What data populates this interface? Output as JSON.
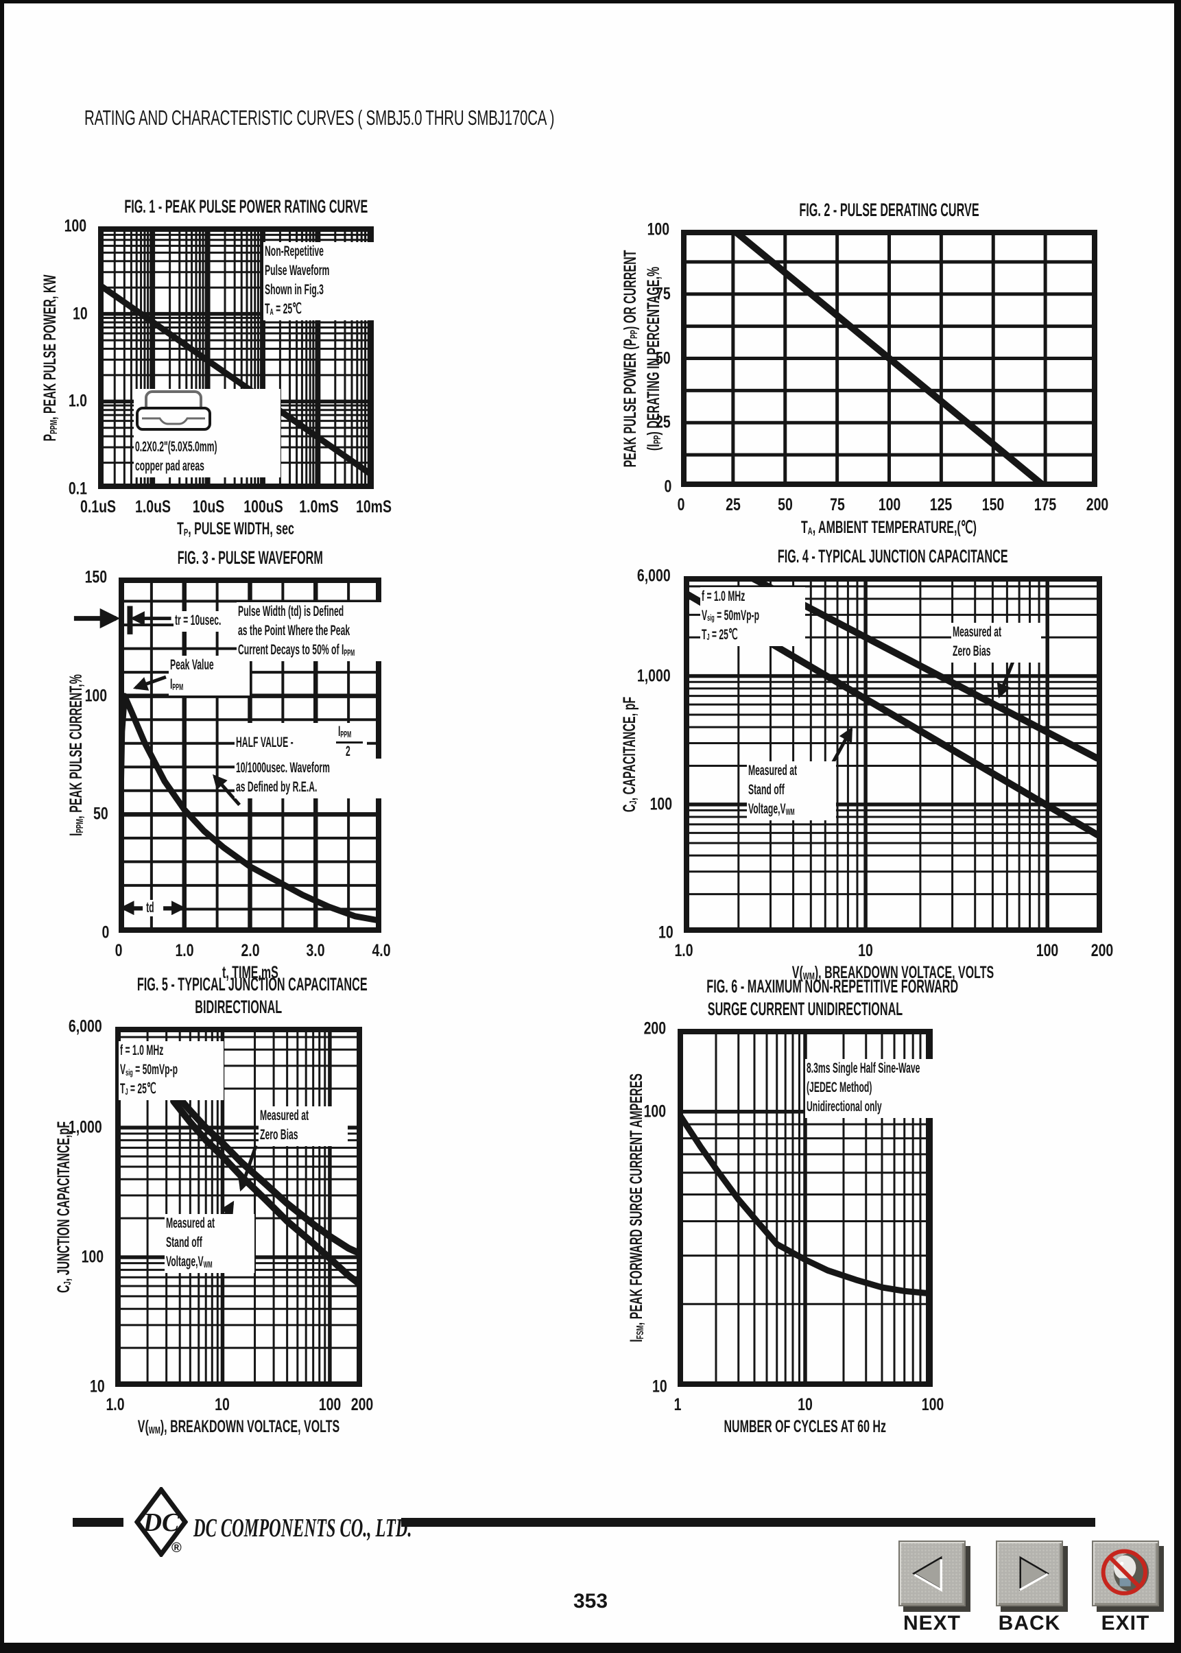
{
  "page": {
    "title": "RATING AND CHARACTERISTIC CURVES ( SMBJ5.0 THRU SMBJ170CA )",
    "page_number": "353",
    "footer": {
      "company": "DC COMPONENTS CO., LTD.",
      "logo_text": "DC",
      "registered": "®"
    },
    "nav": {
      "next": "NEXT",
      "back": "BACK",
      "exit": "EXIT"
    },
    "colors": {
      "ink": "#161616",
      "paper": "#fefefe",
      "button_face": "#b4b3ae",
      "exit_red": "#c6261e"
    }
  },
  "chart_data": [
    {
      "id": "fig1",
      "type": "line",
      "title_lines": [
        "FIG. 1 - PEAK PULSE POWER RATING CURVE"
      ],
      "xlabel": "T_{P}, PULSE WIDTH, sec",
      "ylabel_lines": [
        "P_{PPM}, PEAK PULSE POWER, KW"
      ],
      "xscale": "log",
      "yscale": "log",
      "xlim": [
        1e-07,
        0.01
      ],
      "ylim": [
        0.1,
        100
      ],
      "stroke": 9,
      "xticks": [
        {
          "v": 1e-07,
          "label": "0.1uS"
        },
        {
          "v": 1e-06,
          "label": "1.0uS"
        },
        {
          "v": 1e-05,
          "label": "10uS"
        },
        {
          "v": 0.0001,
          "label": "100uS"
        },
        {
          "v": 0.001,
          "label": "1.0mS"
        },
        {
          "v": 0.01,
          "label": "10mS"
        }
      ],
      "yticks": [
        {
          "v": 100,
          "label": "100"
        },
        {
          "v": 10,
          "label": "10"
        },
        {
          "v": 1,
          "label": "1.0"
        },
        {
          "v": 0.1,
          "label": "0.1"
        }
      ],
      "series": [
        {
          "name": "peak-pulse-power",
          "points": [
            [
              1e-07,
              22
            ],
            [
              1e-06,
              8.0
            ],
            [
              1e-05,
              2.9
            ],
            [
              0.0001,
              1.06
            ],
            [
              0.001,
              0.385
            ],
            [
              0.01,
              0.14
            ]
          ]
        }
      ],
      "annotations": [
        {
          "type": "text",
          "x": 60,
          "y": 6,
          "lines": [
            "Non-Repetitive",
            "Pulse Waveform",
            "Shown in Fig.3",
            "T_{A} = 25℃"
          ]
        },
        {
          "type": "device",
          "x": 13,
          "y": 62,
          "lines": [
            "0.2X0.2\"(5.0X5.0mm)",
            "copper pad areas"
          ]
        }
      ]
    },
    {
      "id": "fig2",
      "type": "line",
      "title_lines": [
        "FIG. 2 - PULSE DERATING CURVE"
      ],
      "xlabel": "T_{A}, AMBIENT TEMPERATURE,(℃)",
      "ylabel_lines": [
        "PEAK PULSE POWER (P_{PP}) OR CURRENT",
        "(I_{PP}) DERATING IN PERCENTAGE,%"
      ],
      "xscale": "linear",
      "yscale": "linear",
      "xlim": [
        0,
        200
      ],
      "ylim": [
        0,
        100
      ],
      "grid": {
        "x_minor": 25,
        "y_minor": 12.5,
        "minor_w": 5,
        "major_w": 5
      },
      "stroke": 10,
      "xticks": [
        {
          "v": 0,
          "label": "0"
        },
        {
          "v": 25,
          "label": "25"
        },
        {
          "v": 50,
          "label": "50"
        },
        {
          "v": 75,
          "label": "75"
        },
        {
          "v": 100,
          "label": "100"
        },
        {
          "v": 125,
          "label": "125"
        },
        {
          "v": 150,
          "label": "150"
        },
        {
          "v": 175,
          "label": "175"
        },
        {
          "v": 200,
          "label": "200"
        }
      ],
      "yticks": [
        {
          "v": 100,
          "label": "100"
        },
        {
          "v": 75,
          "label": "75"
        },
        {
          "v": 50,
          "label": "50"
        },
        {
          "v": 25,
          "label": "25"
        },
        {
          "v": 0,
          "label": "0"
        }
      ],
      "series": [
        {
          "name": "derating",
          "points": [
            [
              0,
              100
            ],
            [
              25,
              100
            ],
            [
              175,
              0
            ]
          ]
        }
      ],
      "annotations": []
    },
    {
      "id": "fig3",
      "type": "line",
      "title_lines": [
        "FIG. 3 - PULSE WAVEFORM"
      ],
      "xlabel": "t, TIME,mS",
      "ylabel_lines": [
        "I_{PPM}, PEAK PULSE CURRENT,%"
      ],
      "xscale": "linear",
      "yscale": "linear",
      "xlim": [
        0,
        4
      ],
      "ylim": [
        0,
        150
      ],
      "grid": {
        "x_minor": 0.5,
        "x_major": 1,
        "y_minor": 10,
        "y_major": 50,
        "minor_w": 4,
        "major_w": 6.5
      },
      "stroke": 9,
      "xticks": [
        {
          "v": 0,
          "label": "0"
        },
        {
          "v": 1,
          "label": "1.0"
        },
        {
          "v": 2,
          "label": "2.0"
        },
        {
          "v": 3,
          "label": "3.0"
        },
        {
          "v": 4,
          "label": "4.0"
        }
      ],
      "yticks": [
        {
          "v": 150,
          "label": "150"
        },
        {
          "v": 100,
          "label": "100"
        },
        {
          "v": 50,
          "label": "50"
        },
        {
          "v": 0,
          "label": "0"
        }
      ],
      "series": [
        {
          "name": "pulse-waveform",
          "points": [
            [
              0,
              0
            ],
            [
              0.02,
              40
            ],
            [
              0.05,
              85
            ],
            [
              0.09,
              100
            ],
            [
              0.2,
              93
            ],
            [
              0.4,
              80
            ],
            [
              0.7,
              64
            ],
            [
              1.0,
              52
            ],
            [
              1.3,
              43
            ],
            [
              1.6,
              36
            ],
            [
              2.0,
              28
            ],
            [
              2.4,
              22
            ],
            [
              2.8,
              16
            ],
            [
              3.2,
              11
            ],
            [
              3.6,
              7
            ],
            [
              4.0,
              5
            ]
          ]
        }
      ],
      "annotations": [
        {
          "type": "text",
          "x": 21,
          "y": 9.5,
          "lines": [
            "tr = 10usec."
          ]
        },
        {
          "type": "arrow",
          "from": [
            20,
            11.5
          ],
          "to": [
            5.5,
            11.5
          ]
        },
        {
          "type": "arrow",
          "from": [
            -17,
            11.5
          ],
          "to": [
            -1,
            11.5
          ],
          "w": 7
        },
        {
          "type": "vbar",
          "x": 4.3,
          "y1": 8,
          "y2": 16
        },
        {
          "type": "text",
          "x": 19,
          "y": 22,
          "lines": [
            "Peak Value",
            "I_{PPM}"
          ]
        },
        {
          "type": "arrow",
          "from": [
            18,
            28
          ],
          "to": [
            6.5,
            31
          ]
        },
        {
          "type": "text",
          "x": 45,
          "y": 7,
          "lines": [
            "Pulse Width (td) is Defined",
            "as the Point Where the Peak",
            "Current Decays to 50% of I_{PPM}"
          ]
        },
        {
          "type": "fraction",
          "x": 44,
          "y": 41,
          "pre": "HALF VALUE - ",
          "top": "I_{PPM}",
          "bot": "2"
        },
        {
          "type": "text",
          "x": 44,
          "y": 51,
          "lines": [
            "10/1000usec. Waveform",
            "as Defined by R.E.A."
          ]
        },
        {
          "type": "arrow",
          "from": [
            46,
            64
          ],
          "to": [
            36.5,
            56
          ]
        },
        {
          "type": "dblarrow",
          "x1": 1.5,
          "x2": 24.5,
          "y": 93,
          "label": "td"
        }
      ]
    },
    {
      "id": "fig4",
      "type": "line",
      "title_lines": [
        "FIG. 4 - TYPICAL JUNCTION CAPACITANCE"
      ],
      "xlabel": "V(_{WM}), BREAKDOWN VOLTACE, VOLTS",
      "ylabel_lines": [
        "C_{J}, CAPACITANCE, pF"
      ],
      "xscale": "log",
      "yscale": "log",
      "xlim": [
        1,
        200
      ],
      "ylim": [
        10,
        6000
      ],
      "stroke": 10,
      "xticks": [
        {
          "v": 1,
          "label": "1.0"
        },
        {
          "v": 10,
          "label": "10"
        },
        {
          "v": 100,
          "label": "100"
        },
        {
          "v": 200,
          "label": "200"
        }
      ],
      "yticks": [
        {
          "v": 6000,
          "label": "6,000"
        },
        {
          "v": 1000,
          "label": "1,000"
        },
        {
          "v": 100,
          "label": "100"
        },
        {
          "v": 10,
          "label": "10"
        }
      ],
      "series": [
        {
          "name": "zero-bias",
          "points": [
            [
              1,
              11000
            ],
            [
              188,
              229
            ]
          ]
        },
        {
          "name": "stand-off",
          "points": [
            [
              1,
              4500
            ],
            [
              188,
              58
            ]
          ]
        }
      ],
      "annotations": [
        {
          "type": "text",
          "x": 4,
          "y": 3,
          "lines": [
            "f = 1.0 MHz",
            "V_{sig} = 50mVp-p",
            "T_{J} = 25℃"
          ]
        },
        {
          "type": "text",
          "x": 64,
          "y": 13,
          "lines": [
            "Measured at",
            "Zero Bias"
          ]
        },
        {
          "type": "arrow",
          "from": [
            79,
            23
          ],
          "to": [
            75.5,
            33.5
          ]
        },
        {
          "type": "text",
          "x": 15,
          "y": 52,
          "lines": [
            "Measured at",
            "Stand off",
            "Voltage,V_{WM}"
          ]
        },
        {
          "type": "arrow",
          "from": [
            32,
            60
          ],
          "to": [
            40,
            43
          ]
        }
      ]
    },
    {
      "id": "fig5",
      "type": "line",
      "title_lines": [
        "FIG. 5 - TYPICAL JUNCTION CAPACITANCE",
        "BIDIRECTIONAL"
      ],
      "xlabel": "V(_{WM}), BREAKDOWN VOLTACE, VOLTS",
      "ylabel_lines": [
        "C_{J}, JUNCTION CAPACITANCE,pF"
      ],
      "xscale": "log",
      "yscale": "log",
      "xlim": [
        1,
        200
      ],
      "ylim": [
        10,
        6000
      ],
      "stroke": 10,
      "xticks": [
        {
          "v": 1,
          "label": "1.0"
        },
        {
          "v": 10,
          "label": "10"
        },
        {
          "v": 100,
          "label": "100"
        },
        {
          "v": 200,
          "label": "200"
        }
      ],
      "yticks": [
        {
          "v": 6000,
          "label": "6,000"
        },
        {
          "v": 1000,
          "label": "1,000"
        },
        {
          "v": 100,
          "label": "100"
        },
        {
          "v": 10,
          "label": "10"
        }
      ],
      "series": [
        {
          "name": "zero-bias",
          "points": [
            [
              3.5,
              1900
            ],
            [
              5,
              1350
            ],
            [
              7,
              1000
            ],
            [
              10,
              760
            ],
            [
              15,
              540
            ],
            [
              25,
              370
            ],
            [
              40,
              260
            ],
            [
              70,
              180
            ],
            [
              100,
              145
            ],
            [
              150,
              117
            ],
            [
              200,
              105
            ]
          ]
        },
        {
          "name": "stand-off",
          "points": [
            [
              3.5,
              1600
            ],
            [
              5,
              1100
            ],
            [
              7,
              800
            ],
            [
              10,
              600
            ],
            [
              15,
              420
            ],
            [
              25,
              280
            ],
            [
              40,
              190
            ],
            [
              70,
              128
            ],
            [
              100,
              98
            ],
            [
              150,
              72
            ],
            [
              200,
              60
            ]
          ]
        }
      ],
      "annotations": [
        {
          "type": "text",
          "x": 1.5,
          "y": 4,
          "lines": [
            "f = 1.0 MHz",
            "V_{sig} = 50mVp-p",
            "T_{J} = 25℃"
          ]
        },
        {
          "type": "text",
          "x": 58,
          "y": 22,
          "lines": [
            "Measured at",
            "Zero Bias"
          ]
        },
        {
          "type": "arrow",
          "from": [
            57,
            33
          ],
          "to": [
            51,
            45
          ]
        },
        {
          "type": "text",
          "x": 20,
          "y": 52,
          "lines": [
            "Measured at",
            "Stand off",
            "Voltage,V_{WM}"
          ]
        },
        {
          "type": "arrow",
          "from": [
            40,
            57.5
          ],
          "to": [
            47.5,
            49
          ]
        }
      ]
    },
    {
      "id": "fig6",
      "type": "line",
      "title_lines": [
        "FIG. 6 - MAXIMUM NON-REPETITIVE FORWARD",
        "SURGE CURRENT UNIDIRECTIONAL"
      ],
      "xlabel": "NUMBER OF CYCLES AT 60 Hz",
      "ylabel_lines": [
        "I_{FSM}, PEAK FORWARD SURGE CURRENT AMPERES"
      ],
      "xscale": "log",
      "yscale": "log",
      "xlim": [
        1,
        100
      ],
      "ylim": [
        10,
        200
      ],
      "stroke": 9,
      "xticks": [
        {
          "v": 1,
          "label": "1"
        },
        {
          "v": 10,
          "label": "10"
        },
        {
          "v": 100,
          "label": "100"
        }
      ],
      "yticks": [
        {
          "v": 200,
          "label": "200"
        },
        {
          "v": 100,
          "label": "100"
        },
        {
          "v": 10,
          "label": "10"
        }
      ],
      "series": [
        {
          "name": "surge-current",
          "points": [
            [
              1,
              100
            ],
            [
              1.5,
              75
            ],
            [
              2,
              62
            ],
            [
              3,
              48
            ],
            [
              4,
              41
            ],
            [
              6,
              33
            ],
            [
              10,
              29
            ],
            [
              15,
              26.5
            ],
            [
              25,
              24.5
            ],
            [
              40,
              23
            ],
            [
              60,
              22.3
            ],
            [
              100,
              21.8
            ]
          ]
        }
      ],
      "annotations": [
        {
          "type": "text",
          "x": 50,
          "y": 8.5,
          "lines": [
            "8.3ms Single Half Sine-Wave",
            "(JEDEC Method)",
            "Unidirectional only"
          ]
        }
      ]
    }
  ]
}
